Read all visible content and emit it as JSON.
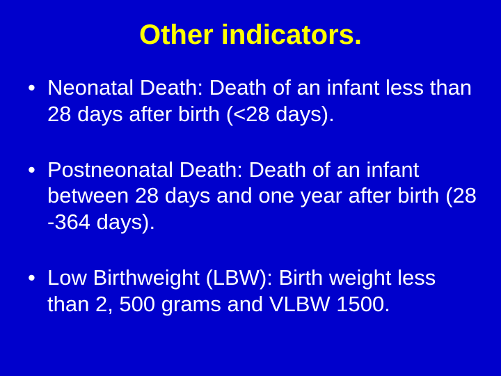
{
  "slide": {
    "background_color": "#0000cc",
    "title": {
      "text": "Other indicators.",
      "color": "#ffff00",
      "font_size": 40,
      "font_weight": "bold",
      "font_family": "Arial",
      "align": "center"
    },
    "body": {
      "color": "#ffffff",
      "font_size": 31,
      "font_family": "Arial",
      "bullet_char": "•",
      "items": [
        "Neonatal Death: Death of an infant less than 28 days after birth (<28 days).",
        "Postneonatal Death: Death of an infant between 28 days and one year after birth (28 -364 days).",
        "Low Birthweight (LBW): Birth weight less than 2, 500 grams and VLBW 1500."
      ]
    }
  }
}
